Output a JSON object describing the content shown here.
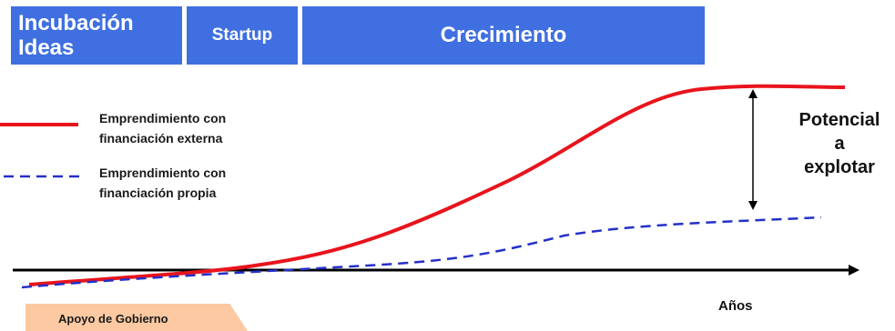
{
  "stages": [
    {
      "label": "Incubación\nIdeas"
    },
    {
      "label": "Startup"
    },
    {
      "label": "Crecimiento"
    }
  ],
  "legend": [
    {
      "label": "Emprendimiento con\nfinanciación externa",
      "line_style": "solid",
      "color": "#e8141c"
    },
    {
      "label": "Emprendimiento con\nfinanciación propia",
      "line_style": "dashed",
      "color": "#2430c8"
    }
  ],
  "potential_label": "Potencial\na\nexplotar",
  "x_axis_label": "Años",
  "government_support_label": "Apoyo de Gobierno",
  "colors": {
    "stage_fill": "#3f6fe0",
    "external_curve": "#e8141c",
    "own_curve": "#2430c8",
    "support_fill": "#fcc9a2",
    "axis": "#000000"
  }
}
